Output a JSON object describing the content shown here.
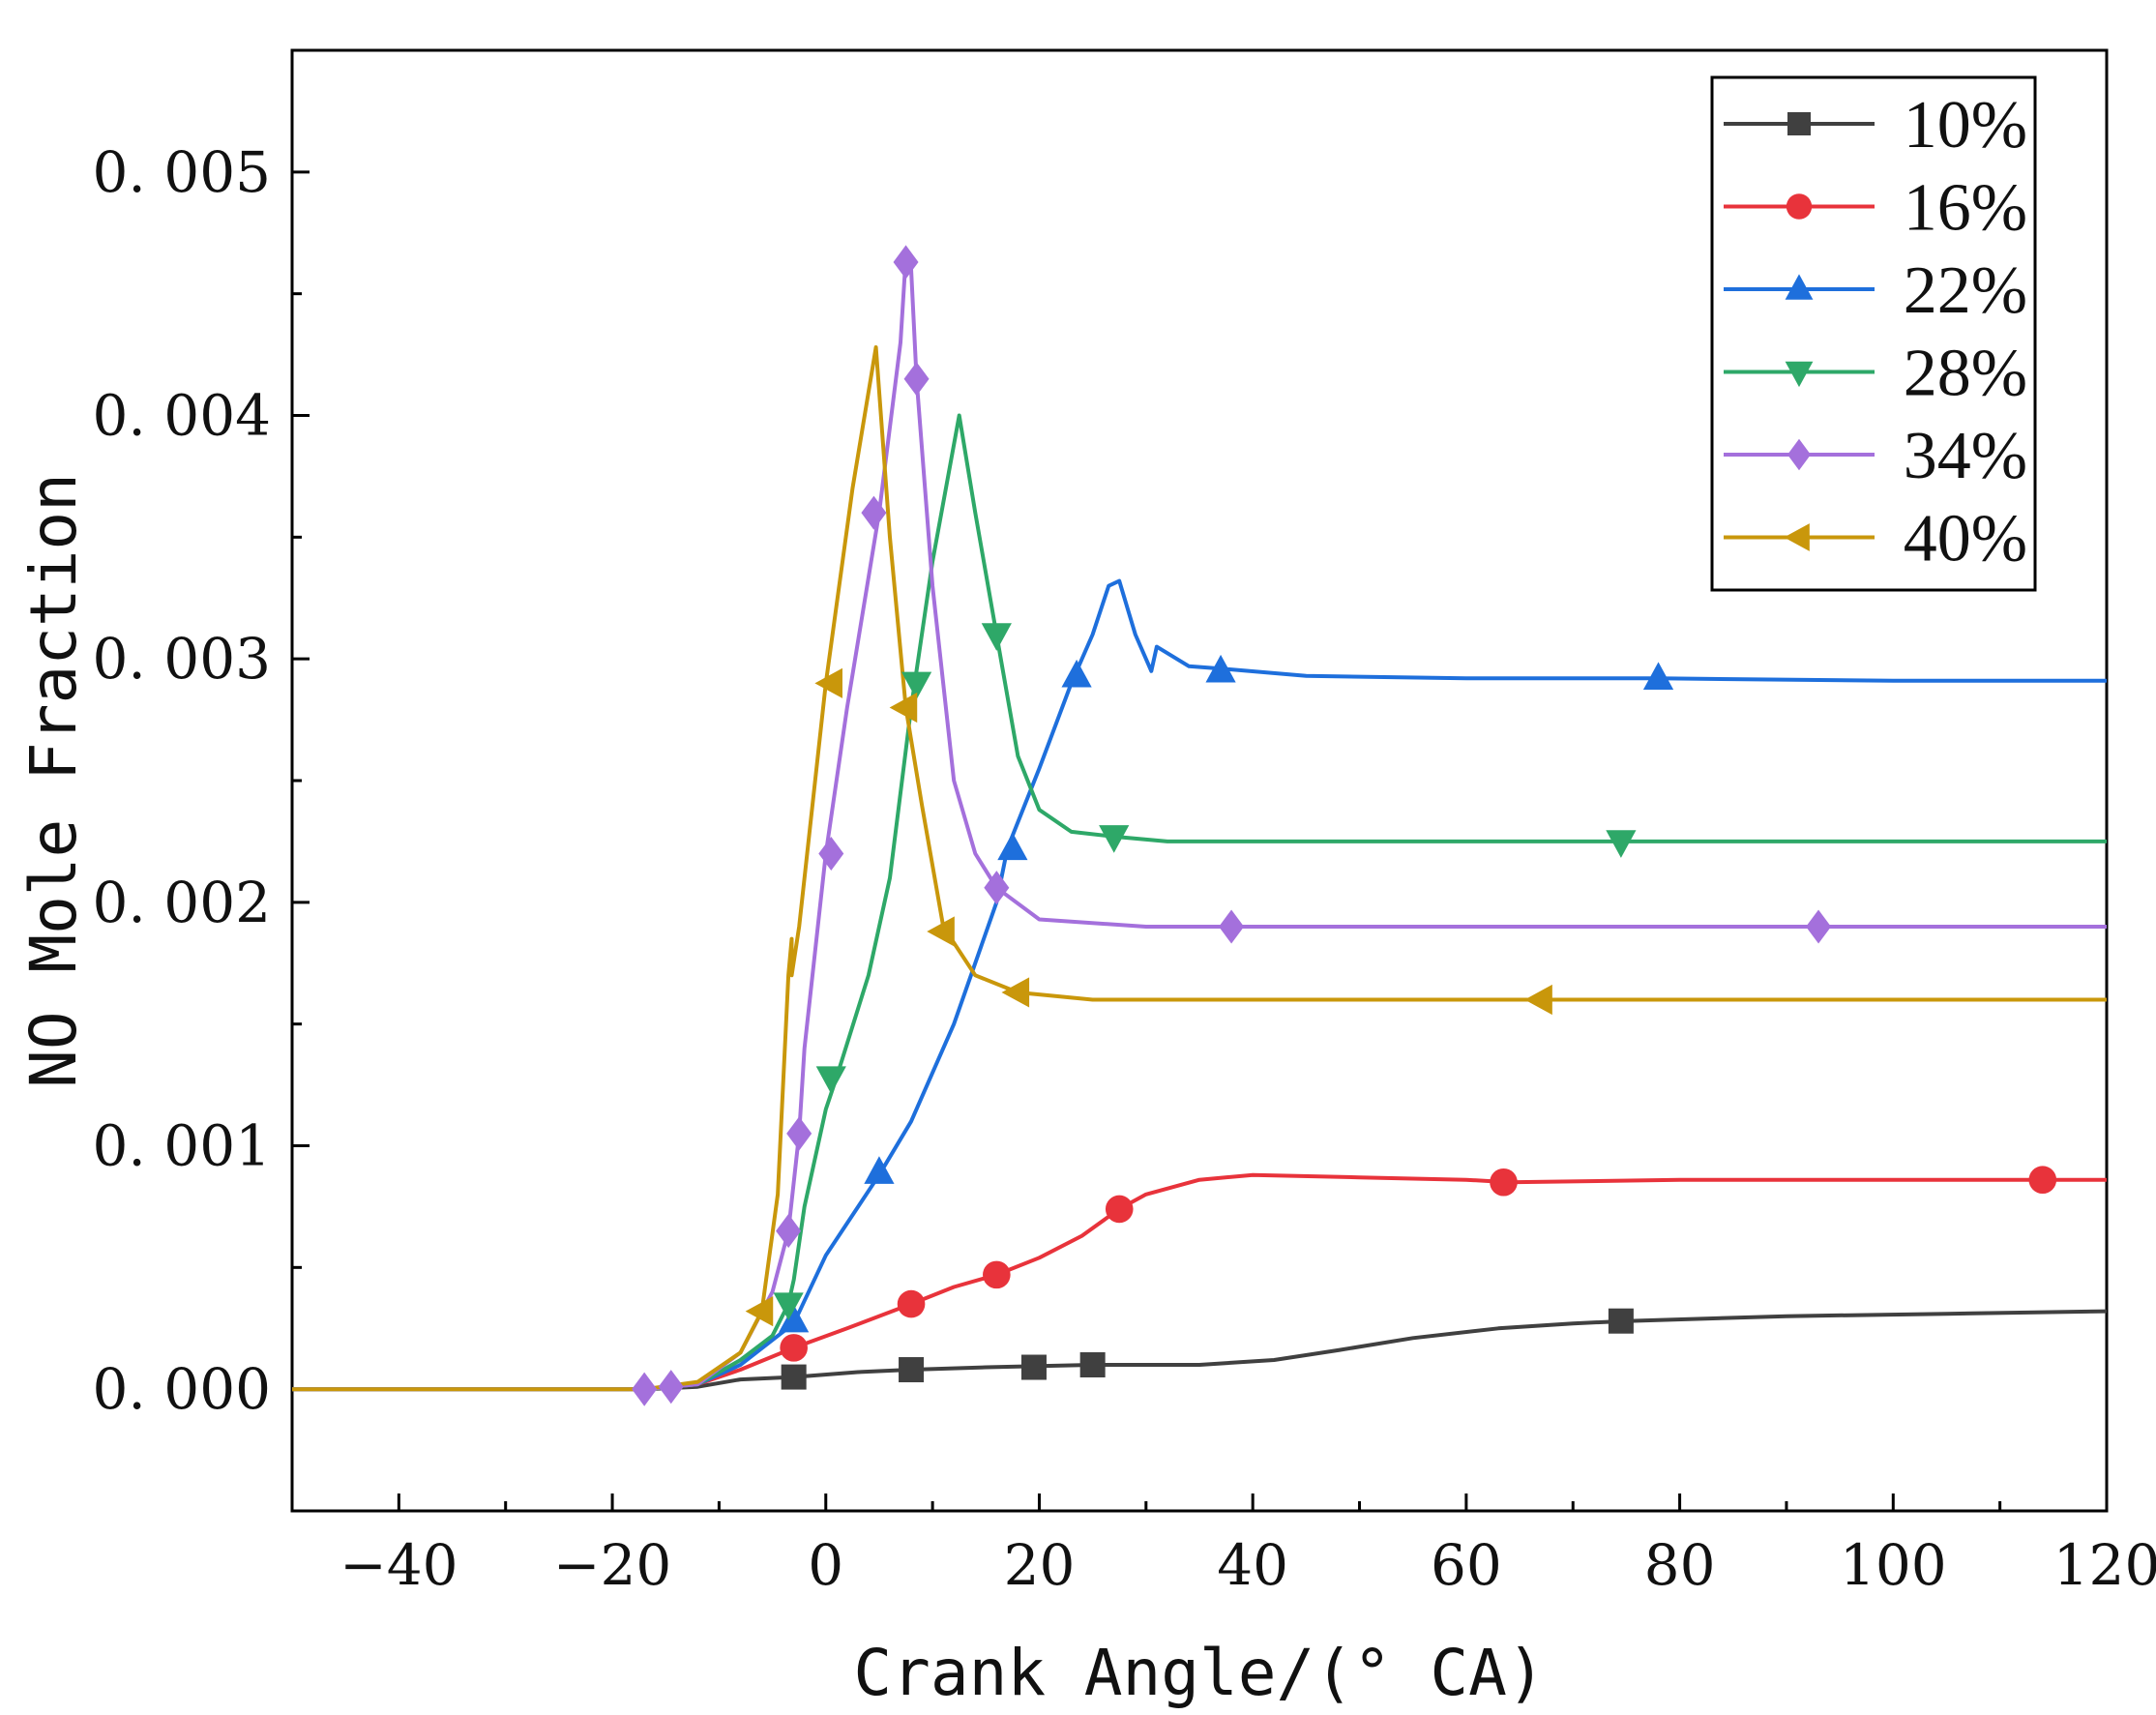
{
  "chart_data": {
    "type": "line",
    "title": "",
    "xlabel": "Crank Angle/(° CA)",
    "ylabel": "NO Mole Fraction",
    "xlim": [
      -50,
      120
    ],
    "ylim": [
      -0.0005,
      0.0055
    ],
    "x_ticks": [
      -40,
      -20,
      0,
      20,
      40,
      60,
      80,
      100,
      120
    ],
    "x_tick_labels": [
      "−40",
      "−20",
      "0",
      "20",
      "40",
      "60",
      "80",
      "100",
      "120"
    ],
    "y_ticks": [
      0.0,
      0.001,
      0.002,
      0.003,
      0.004,
      0.005
    ],
    "y_tick_labels": [
      "0. 000",
      "0. 001",
      "0. 002",
      "0. 003",
      "0. 004",
      "0. 005"
    ],
    "grid": false,
    "legend_position": "top-right",
    "series": [
      {
        "name": "10%",
        "color": "#404040",
        "marker": "square",
        "line": [
          [
            -50,
            0
          ],
          [
            -17,
            0
          ],
          [
            -12,
            1e-05
          ],
          [
            -8,
            4e-05
          ],
          [
            -3,
            5e-05
          ],
          [
            3,
            7e-05
          ],
          [
            8,
            8e-05
          ],
          [
            15,
            9e-05
          ],
          [
            25,
            0.0001
          ],
          [
            35,
            0.0001
          ],
          [
            42,
            0.00012
          ],
          [
            48,
            0.00016
          ],
          [
            55,
            0.00021
          ],
          [
            63,
            0.00025
          ],
          [
            70,
            0.00027
          ],
          [
            75,
            0.00028
          ],
          [
            90,
            0.0003
          ],
          [
            105,
            0.00031
          ],
          [
            120,
            0.00032
          ]
        ],
        "markers": [
          [
            -3,
            5e-05
          ],
          [
            8,
            8e-05
          ],
          [
            19.5,
            9e-05
          ],
          [
            25,
            0.0001
          ],
          [
            74.5,
            0.00028
          ]
        ]
      },
      {
        "name": "16%",
        "color": "#e8333b",
        "marker": "circle",
        "line": [
          [
            -50,
            0
          ],
          [
            -17,
            0
          ],
          [
            -12,
            2e-05
          ],
          [
            -8,
            8e-05
          ],
          [
            -3,
            0.00017
          ],
          [
            2,
            0.00025
          ],
          [
            8,
            0.00035
          ],
          [
            12,
            0.00042
          ],
          [
            16,
            0.00047
          ],
          [
            20,
            0.00054
          ],
          [
            24,
            0.00063
          ],
          [
            27.5,
            0.00074
          ],
          [
            30,
            0.0008
          ],
          [
            35,
            0.00086
          ],
          [
            40,
            0.00088
          ],
          [
            50,
            0.00087
          ],
          [
            60,
            0.00086
          ],
          [
            64,
            0.00085
          ],
          [
            80,
            0.00086
          ],
          [
            100,
            0.00086
          ],
          [
            114,
            0.00086
          ],
          [
            120,
            0.00086
          ]
        ],
        "markers": [
          [
            -3,
            0.00017
          ],
          [
            8,
            0.00035
          ],
          [
            16,
            0.00047
          ],
          [
            27.5,
            0.00074
          ],
          [
            63.5,
            0.00085
          ],
          [
            114,
            0.00086
          ]
        ]
      },
      {
        "name": "22%",
        "color": "#1e6fdc",
        "marker": "triangle-up",
        "line": [
          [
            -50,
            0
          ],
          [
            -17,
            0
          ],
          [
            -12,
            2e-05
          ],
          [
            -8,
            0.0001
          ],
          [
            -3,
            0.00027
          ],
          [
            0,
            0.00055
          ],
          [
            5,
            0.00088
          ],
          [
            8,
            0.0011
          ],
          [
            12,
            0.0015
          ],
          [
            16,
            0.002
          ],
          [
            17,
            0.00222
          ],
          [
            20,
            0.00255
          ],
          [
            23,
            0.0029
          ],
          [
            25,
            0.0031
          ],
          [
            26.5,
            0.0033
          ],
          [
            27.5,
            0.00332
          ],
          [
            29,
            0.0031
          ],
          [
            30.5,
            0.00295
          ],
          [
            31,
            0.00305
          ],
          [
            34,
            0.00297
          ],
          [
            37,
            0.00296
          ],
          [
            45,
            0.00293
          ],
          [
            60,
            0.00292
          ],
          [
            78,
            0.00292
          ],
          [
            100,
            0.00291
          ],
          [
            120,
            0.00291
          ]
        ],
        "markers": [
          [
            -3,
            0.00028
          ],
          [
            5,
            0.00089
          ],
          [
            17.5,
            0.00222
          ],
          [
            23.5,
            0.00293
          ],
          [
            37,
            0.00295
          ],
          [
            78,
            0.00292
          ]
        ]
      },
      {
        "name": "28%",
        "color": "#2ea868",
        "marker": "triangle-down",
        "line": [
          [
            -50,
            0
          ],
          [
            -17,
            0
          ],
          [
            -12,
            2e-05
          ],
          [
            -8,
            0.00012
          ],
          [
            -5,
            0.00022
          ],
          [
            -3.5,
            0.00035
          ],
          [
            -3,
            0.00045
          ],
          [
            -2,
            0.00075
          ],
          [
            0,
            0.00115
          ],
          [
            1,
            0.00128
          ],
          [
            4,
            0.0017
          ],
          [
            6,
            0.0021
          ],
          [
            8,
            0.0028
          ],
          [
            10,
            0.0034
          ],
          [
            12.5,
            0.004
          ],
          [
            14,
            0.0036
          ],
          [
            16,
            0.0031
          ],
          [
            18,
            0.0026
          ],
          [
            20,
            0.00238
          ],
          [
            23,
            0.00229
          ],
          [
            27,
            0.00227
          ],
          [
            32,
            0.00225
          ],
          [
            50,
            0.00225
          ],
          [
            74,
            0.00225
          ],
          [
            100,
            0.00225
          ],
          [
            120,
            0.00225
          ]
        ],
        "markers": [
          [
            -3.5,
            0.00035
          ],
          [
            0.5,
            0.00128
          ],
          [
            8.5,
            0.0029
          ],
          [
            16,
            0.0031
          ],
          [
            27,
            0.00227
          ],
          [
            74.5,
            0.00225
          ]
        ]
      },
      {
        "name": "34%",
        "color": "#a470dc",
        "marker": "diamond",
        "line": [
          [
            -50,
            0
          ],
          [
            -17,
            0
          ],
          [
            -12,
            2e-05
          ],
          [
            -8,
            0.00015
          ],
          [
            -5,
            0.0004
          ],
          [
            -3.5,
            0.00065
          ],
          [
            -2.5,
            0.00105
          ],
          [
            -2,
            0.0014
          ],
          [
            0,
            0.0022
          ],
          [
            2,
            0.0028
          ],
          [
            5,
            0.0036
          ],
          [
            7,
            0.0043
          ],
          [
            7.5,
            0.00465
          ],
          [
            8,
            0.0046
          ],
          [
            8.5,
            0.00415
          ],
          [
            10,
            0.0033
          ],
          [
            12,
            0.0025
          ],
          [
            14,
            0.0022
          ],
          [
            16,
            0.00206
          ],
          [
            20,
            0.00193
          ],
          [
            30,
            0.0019
          ],
          [
            38,
            0.0019
          ],
          [
            60,
            0.0019
          ],
          [
            93,
            0.0019
          ],
          [
            120,
            0.0019
          ]
        ],
        "markers": [
          [
            -17,
            0
          ],
          [
            -14.5,
            1e-05
          ],
          [
            -3.5,
            0.00065
          ],
          [
            -2.5,
            0.00105
          ],
          [
            0.5,
            0.0022
          ],
          [
            4.5,
            0.0036
          ],
          [
            7.5,
            0.00463
          ],
          [
            8.5,
            0.00415
          ],
          [
            16,
            0.00206
          ],
          [
            38,
            0.0019
          ],
          [
            93,
            0.0019
          ]
        ]
      },
      {
        "name": "40%",
        "color": "#c9970b",
        "marker": "triangle-left",
        "line": [
          [
            -50,
            0
          ],
          [
            -17,
            0
          ],
          [
            -12,
            3e-05
          ],
          [
            -8,
            0.00015
          ],
          [
            -6,
            0.00032
          ],
          [
            -4.5,
            0.0008
          ],
          [
            -3.5,
            0.0017
          ],
          [
            -3.2,
            0.00185
          ],
          [
            -3.2,
            0.0017
          ],
          [
            -2.5,
            0.0019
          ],
          [
            0,
            0.0029
          ],
          [
            2.5,
            0.0037
          ],
          [
            4.7,
            0.00428
          ],
          [
            6,
            0.0035
          ],
          [
            7.5,
            0.0028
          ],
          [
            9,
            0.0024
          ],
          [
            11,
            0.0019
          ],
          [
            14,
            0.0017
          ],
          [
            18,
            0.00163
          ],
          [
            25,
            0.0016
          ],
          [
            50,
            0.0016
          ],
          [
            67,
            0.0016
          ],
          [
            90,
            0.0016
          ],
          [
            120,
            0.0016
          ]
        ],
        "markers": [
          [
            -6,
            0.00032
          ],
          [
            0.5,
            0.0029
          ],
          [
            7.5,
            0.0028
          ],
          [
            11,
            0.00188
          ],
          [
            18,
            0.00163
          ],
          [
            67,
            0.0016
          ]
        ]
      }
    ]
  }
}
